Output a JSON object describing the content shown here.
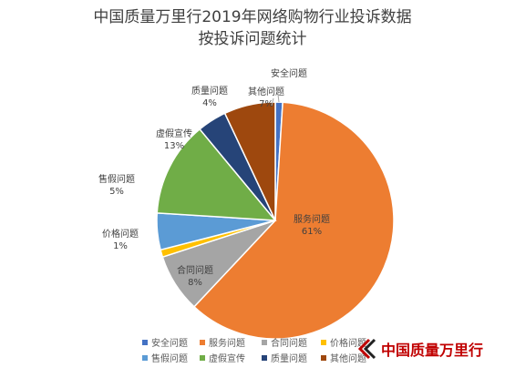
{
  "chart_data": {
    "type": "pie",
    "title_lines": [
      "中国质量万里行2019年网络购物行业投诉数据",
      "按投诉问题统计"
    ],
    "slices": [
      {
        "name": "安全问题",
        "value": 1,
        "label_lines": [
          "安全问题",
          ""
        ],
        "color": "#4472C4"
      },
      {
        "name": "服务问题",
        "value": 61,
        "label_lines": [
          "服务问题",
          "61%"
        ],
        "color": "#ED7D31"
      },
      {
        "name": "合同问题",
        "value": 8,
        "label_lines": [
          "合同问题",
          "8%"
        ],
        "color": "#A5A5A5"
      },
      {
        "name": "价格问题",
        "value": 1,
        "label_lines": [
          "价格问题",
          "1%"
        ],
        "color": "#FFC000"
      },
      {
        "name": "售假问题",
        "value": 5,
        "label_lines": [
          "售假问题",
          "5%"
        ],
        "color": "#5B9BD5"
      },
      {
        "name": "虚假宣传",
        "value": 13,
        "label_lines": [
          "虚假宣传",
          "13%"
        ],
        "color": "#70AD47"
      },
      {
        "name": "质量问题",
        "value": 4,
        "label_lines": [
          "质量问题",
          "4%"
        ],
        "color": "#264478"
      },
      {
        "name": "其他问题",
        "value": 7,
        "label_lines": [
          "其他问题",
          "7%"
        ],
        "color": "#9E480E"
      }
    ],
    "legend_position": "bottom"
  },
  "watermark": {
    "text": "中国质量万里行",
    "color": "#c00000"
  }
}
